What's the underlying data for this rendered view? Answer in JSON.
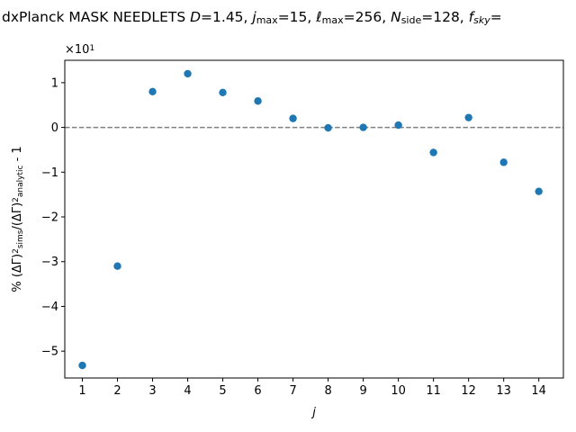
{
  "chart_data": {
    "type": "scatter",
    "title_segments": [
      {
        "t": "dxPlanck MASK NEEDLETS "
      },
      {
        "t": "D",
        "i": true
      },
      {
        "t": "=1.45,  "
      },
      {
        "t": "j",
        "i": true
      },
      {
        "t": "max",
        "sub": true
      },
      {
        "t": "=15,  "
      },
      {
        "t": "ℓ",
        "i": true
      },
      {
        "t": "max",
        "sub": true
      },
      {
        "t": "=256,  "
      },
      {
        "t": "N",
        "i": true
      },
      {
        "t": "side",
        "sub": true
      },
      {
        "t": "=128, "
      },
      {
        "t": "f",
        "i": true
      },
      {
        "t": "sky",
        "sub": true,
        "i": true
      },
      {
        "t": "="
      }
    ],
    "xlabel": "j",
    "ylabel_segments": [
      {
        "t": "% (ΔΓ)"
      },
      {
        "t": "2",
        "sup": true
      },
      {
        "t": "sims",
        "sub": true
      },
      {
        "t": "/(ΔΓ)"
      },
      {
        "t": "2",
        "sup": true
      },
      {
        "t": "analytic",
        "sub": true
      },
      {
        "t": " - 1"
      }
    ],
    "multiplier": {
      "base": "×10",
      "exp": "1"
    },
    "x": [
      1,
      2,
      3,
      4,
      5,
      6,
      7,
      8,
      9,
      10,
      11,
      12,
      13,
      14
    ],
    "y": [
      -5.32,
      -3.1,
      0.8,
      1.2,
      0.78,
      0.59,
      0.2,
      -0.01,
      0.0,
      0.05,
      -0.56,
      0.22,
      -0.78,
      -1.43
    ],
    "xlim": [
      0.5,
      14.7
    ],
    "ylim": [
      -5.6,
      1.5
    ],
    "xticks": [
      1,
      2,
      3,
      4,
      5,
      6,
      7,
      8,
      9,
      10,
      11,
      12,
      13,
      14
    ],
    "yticks": [
      -5,
      -4,
      -3,
      -2,
      -1,
      0,
      1
    ],
    "ytick_labels": [
      "−5",
      "−4",
      "−3",
      "−2",
      "−1",
      "0",
      "1"
    ],
    "reference_line": {
      "y": 0,
      "style": "dashed",
      "color": "#808080"
    },
    "marker_color": "#1f77b4",
    "grid": false
  }
}
